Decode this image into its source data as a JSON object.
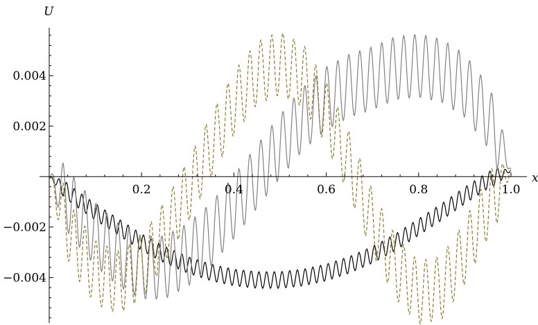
{
  "chart_data": {
    "type": "line",
    "title": "",
    "xlabel": "x",
    "ylabel": "U",
    "xlim": [
      0,
      1.0
    ],
    "ylim": [
      -0.0058,
      0.0059
    ],
    "grid": false,
    "legend": "none",
    "x_ticks": [
      {
        "value": 0.2,
        "label": "0.2"
      },
      {
        "value": 0.4,
        "label": "0.4"
      },
      {
        "value": 0.6,
        "label": "0.6"
      },
      {
        "value": 0.8,
        "label": "0.8"
      },
      {
        "value": 1.0,
        "label": "1.0"
      }
    ],
    "y_ticks": [
      {
        "value": 0.004,
        "label": "0.004"
      },
      {
        "value": 0.002,
        "label": "0.002"
      },
      {
        "value": -0.002,
        "label": "−0.002"
      },
      {
        "value": -0.004,
        "label": "−0.004"
      }
    ],
    "series": [
      {
        "color": "#000000",
        "dash": "none",
        "x": [
          0,
          0.05,
          0.1,
          0.15,
          0.2,
          0.25,
          0.3,
          0.35,
          0.4,
          0.45,
          0.5,
          0.55,
          0.6,
          0.65,
          0.7,
          0.75,
          0.8,
          0.85,
          0.9,
          0.95,
          1.0
        ],
        "y": [
          0,
          -0.00075,
          -0.0014,
          -0.002,
          -0.0026,
          -0.0031,
          -0.0035,
          -0.0038,
          -0.004,
          -0.0041,
          -0.0041,
          -0.004,
          -0.0038,
          -0.0035,
          -0.0031,
          -0.0026,
          -0.002,
          -0.0014,
          -0.00075,
          -0.00015,
          0.00025
        ],
        "ripple_amplitude": 0.00033,
        "ripple_periods": 60
      },
      {
        "color": "#808080",
        "dash": "none",
        "x": [
          0,
          0.05,
          0.1,
          0.15,
          0.2,
          0.25,
          0.3,
          0.35,
          0.4,
          0.45,
          0.5,
          0.55,
          0.6,
          0.65,
          0.7,
          0.75,
          0.8,
          0.85,
          0.9,
          0.95,
          1.0
        ],
        "y": [
          0,
          -0.0012,
          -0.0023,
          -0.0031,
          -0.0036,
          -0.0036,
          -0.0031,
          -0.0023,
          -0.0012,
          0,
          0.0012,
          0.0023,
          0.0031,
          0.0036,
          0.0039,
          0.0043,
          0.0044,
          0.0042,
          0.0036,
          0.0024,
          0.0003
        ],
        "ripple_amplitude": 0.00125,
        "ripple_periods": 42
      },
      {
        "color": "#8a7d2a",
        "dash": "5,3",
        "x": [
          0,
          0.05,
          0.1,
          0.15,
          0.2,
          0.25,
          0.3,
          0.35,
          0.4,
          0.45,
          0.5,
          0.55,
          0.6,
          0.65,
          0.7,
          0.75,
          0.8,
          0.85,
          0.9,
          0.95,
          1.0
        ],
        "y": [
          0,
          -0.0025,
          -0.0038,
          -0.0042,
          -0.0036,
          -0.0022,
          -0.0006,
          0.0012,
          0.0029,
          0.0041,
          0.0045,
          0.004,
          0.0025,
          0.0005,
          -0.0018,
          -0.0036,
          -0.0046,
          -0.0044,
          -0.003,
          -0.0012,
          0.0003
        ],
        "ripple_amplitude": 0.00125,
        "ripple_periods": 42
      }
    ]
  }
}
